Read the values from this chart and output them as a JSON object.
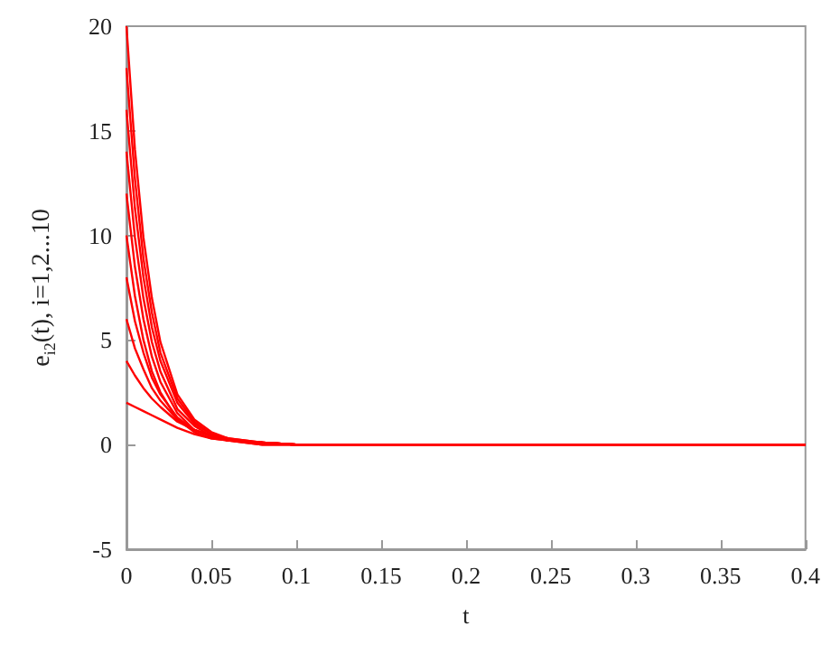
{
  "chart_data": {
    "type": "line",
    "xlabel": "t",
    "ylabel": "e$_{i2}$(t), i=1,2...10",
    "x": [
      0,
      0.005,
      0.01,
      0.015,
      0.02,
      0.03,
      0.04,
      0.05,
      0.06,
      0.08,
      0.1,
      0.4
    ],
    "series": [
      {
        "color": "#ff0000",
        "values": [
          20,
          14.1,
          9.9,
          7.0,
          4.9,
          2.4,
          1.2,
          0.6,
          0.3,
          0.1,
          0,
          0
        ]
      },
      {
        "color": "#ff0000",
        "values": [
          18,
          12.7,
          8.9,
          6.3,
          4.4,
          2.2,
          1.1,
          0.5,
          0.3,
          0.1,
          0,
          0
        ]
      },
      {
        "color": "#ff0000",
        "values": [
          16,
          11.3,
          8.0,
          5.6,
          4.0,
          2.0,
          1.0,
          0.5,
          0.2,
          0.1,
          0,
          0
        ]
      },
      {
        "color": "#ff0000",
        "values": [
          14,
          9.9,
          7.0,
          4.9,
          3.5,
          1.7,
          0.9,
          0.4,
          0.2,
          0.1,
          0,
          0
        ]
      },
      {
        "color": "#ff0000",
        "values": [
          12,
          8.5,
          6.0,
          4.2,
          3.0,
          1.5,
          0.7,
          0.4,
          0.2,
          0,
          0,
          0
        ]
      },
      {
        "color": "#ff0000",
        "values": [
          10,
          7.1,
          5.0,
          3.5,
          2.5,
          1.2,
          0.6,
          0.3,
          0.2,
          0,
          0,
          0
        ]
      },
      {
        "color": "#ff0000",
        "values": [
          8,
          5.9,
          4.4,
          3.2,
          2.4,
          1.3,
          0.7,
          0.4,
          0.2,
          0.1,
          0,
          0
        ]
      },
      {
        "color": "#ff0000",
        "values": [
          6,
          4.6,
          3.6,
          2.7,
          2.1,
          1.2,
          0.7,
          0.4,
          0.2,
          0.1,
          0,
          0
        ]
      },
      {
        "color": "#ff0000",
        "values": [
          4,
          3.3,
          2.7,
          2.2,
          1.8,
          1.1,
          0.7,
          0.4,
          0.2,
          0.1,
          0,
          0
        ]
      },
      {
        "color": "#ff0000",
        "values": [
          2,
          1.8,
          1.6,
          1.4,
          1.2,
          0.8,
          0.5,
          0.3,
          0.2,
          0.1,
          0,
          0
        ]
      }
    ],
    "xlim": [
      0,
      0.4
    ],
    "xticks": [
      0,
      0.05,
      0.1,
      0.15,
      0.2,
      0.25,
      0.3,
      0.35,
      0.4
    ],
    "ylim": [
      -5,
      20
    ],
    "yticks": [
      -5,
      0,
      5,
      10,
      15,
      20
    ],
    "grid": false,
    "marker": "none",
    "line_style": "solid"
  }
}
